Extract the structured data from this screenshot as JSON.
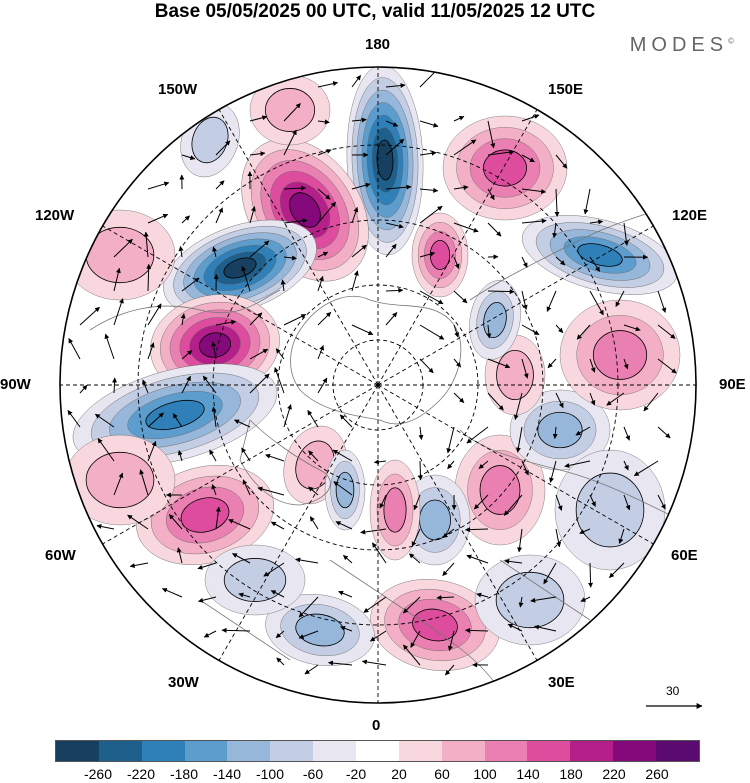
{
  "header": {
    "title": "Base 05/05/2025 00 UTC, valid 11/05/2025 12 UTC",
    "brand": "MODES"
  },
  "map": {
    "projection": "polar stereographic (North Pole)",
    "longitude_labels": {
      "top": "180",
      "top_left": "150W",
      "top_right": "150E",
      "upper_left": "120W",
      "upper_right": "120E",
      "left": "90W",
      "right": "90E",
      "lower_left": "60W",
      "lower_right": "60E",
      "bottom_left": "30W",
      "bottom_right": "30E",
      "bottom": "0"
    },
    "reference_vector_label": "30",
    "anomaly_centers": [
      {
        "sign": "negative",
        "strength": 260,
        "near": "180"
      },
      {
        "sign": "positive",
        "strength": 240,
        "near": "150W-180"
      },
      {
        "sign": "negative",
        "strength": 260,
        "near": "120W"
      },
      {
        "sign": "positive",
        "strength": 240,
        "near": "105W"
      },
      {
        "sign": "negative",
        "strength": 180,
        "near": "90W-75W"
      },
      {
        "sign": "positive",
        "strength": 160,
        "near": "150E"
      },
      {
        "sign": "negative",
        "strength": 220,
        "near": "120E"
      },
      {
        "sign": "positive",
        "strength": 140,
        "near": "165E"
      },
      {
        "sign": "positive",
        "strength": 140,
        "near": "60W"
      },
      {
        "sign": "positive",
        "strength": 160,
        "near": "0-30E"
      },
      {
        "sign": "positive",
        "strength": 120,
        "near": "75E"
      }
    ]
  },
  "colorbar": {
    "ticks": [
      "-260",
      "-220",
      "-180",
      "-140",
      "-100",
      "-60",
      "-20",
      "20",
      "60",
      "100",
      "140",
      "180",
      "220",
      "260"
    ],
    "colors": [
      "#173f5f",
      "#1f5f8b",
      "#2f7fb8",
      "#5d9dcd",
      "#96b7da",
      "#c3cde3",
      "#e7e6f1",
      "#ffffff",
      "#f9d7de",
      "#f3afc6",
      "#ea7fb1",
      "#dd4c9d",
      "#b41f8a",
      "#84097a",
      "#5b0a70"
    ]
  }
}
